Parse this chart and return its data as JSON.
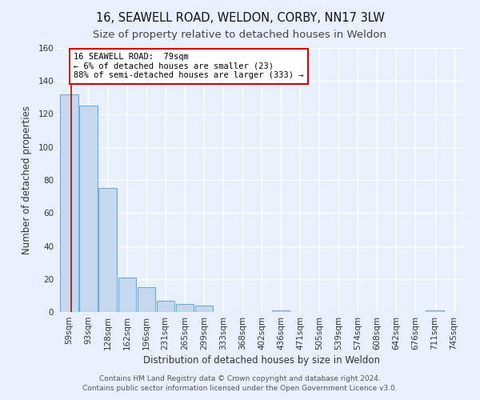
{
  "title": "16, SEAWELL ROAD, WELDON, CORBY, NN17 3LW",
  "subtitle": "Size of property relative to detached houses in Weldon",
  "xlabel": "Distribution of detached houses by size in Weldon",
  "ylabel": "Number of detached properties",
  "bar_labels": [
    "59sqm",
    "93sqm",
    "128sqm",
    "162sqm",
    "196sqm",
    "231sqm",
    "265sqm",
    "299sqm",
    "333sqm",
    "368sqm",
    "402sqm",
    "436sqm",
    "471sqm",
    "505sqm",
    "539sqm",
    "574sqm",
    "608sqm",
    "642sqm",
    "676sqm",
    "711sqm",
    "745sqm"
  ],
  "bar_values": [
    132,
    125,
    75,
    21,
    15,
    7,
    5,
    4,
    0,
    0,
    0,
    1,
    0,
    0,
    0,
    0,
    0,
    0,
    0,
    1,
    0
  ],
  "bar_color": "#c5d8f0",
  "bar_edge_color": "#6aaed6",
  "vline_color": "#cc0000",
  "annotation_text": "16 SEAWELL ROAD:  79sqm\n← 6% of detached houses are smaller (23)\n88% of semi-detached houses are larger (333) →",
  "annotation_box_color": "#ffffff",
  "annotation_box_edge": "#cc0000",
  "ylim": [
    0,
    160
  ],
  "yticks": [
    0,
    20,
    40,
    60,
    80,
    100,
    120,
    140,
    160
  ],
  "footer1": "Contains HM Land Registry data © Crown copyright and database right 2024.",
  "footer2": "Contains public sector information licensed under the Open Government Licence v3.0.",
  "bg_color": "#eaf0fb",
  "plot_bg_color": "#eaf0fb",
  "grid_color": "#ffffff",
  "title_fontsize": 10.5,
  "subtitle_fontsize": 9.5,
  "label_fontsize": 8.5,
  "tick_fontsize": 7.5,
  "footer_fontsize": 6.5
}
